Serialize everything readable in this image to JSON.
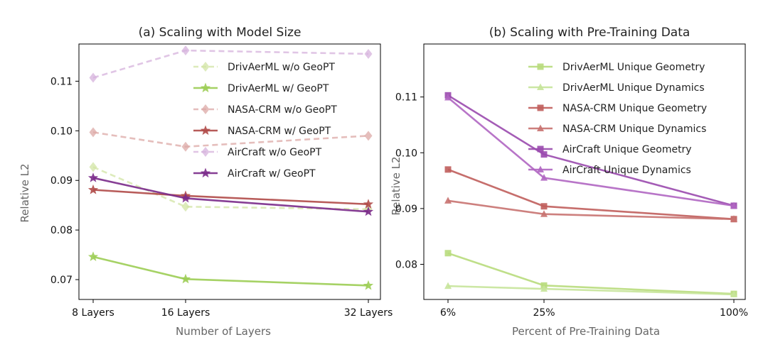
{
  "chart_data": [
    {
      "type": "line",
      "title": "(a) Scaling with Model Size",
      "xlabel": "Number of Layers",
      "ylabel": "Relative L2",
      "categories": [
        "8 Layers",
        "16 Layers",
        "32 Layers"
      ],
      "x": [
        8,
        16,
        32
      ],
      "ylim": [
        0.066,
        0.1175
      ],
      "yticks": [
        0.07,
        0.08,
        0.09,
        0.1,
        0.11
      ],
      "ytick_labels": [
        "0.07",
        "0.08",
        "0.09",
        "0.10",
        "0.11"
      ],
      "grid": false,
      "legend": "top-right",
      "series": [
        {
          "name": "DrivAerML w/o GeoPT",
          "values": [
            0.0927,
            0.0847,
            0.0842
          ],
          "color": "#d2e4a4",
          "dashed": true,
          "marker": "diamond"
        },
        {
          "name": "DrivAerML w/ GeoPT",
          "values": [
            0.0746,
            0.0701,
            0.0688
          ],
          "color": "#9ccd54",
          "dashed": false,
          "marker": "star"
        },
        {
          "name": "NASA-CRM w/o GeoPT",
          "values": [
            0.0997,
            0.0968,
            0.099
          ],
          "color": "#dca8a6",
          "dashed": true,
          "marker": "diamond"
        },
        {
          "name": "NASA-CRM w/ GeoPT",
          "values": [
            0.0881,
            0.0869,
            0.0852
          ],
          "color": "#b04a48",
          "dashed": false,
          "marker": "star"
        },
        {
          "name": "AirCraft w/o GeoPT",
          "values": [
            0.1107,
            0.1162,
            0.1155
          ],
          "color": "#d6b2dc",
          "dashed": true,
          "marker": "diamond"
        },
        {
          "name": "AirCraft w/ GeoPT",
          "values": [
            0.0905,
            0.0864,
            0.0837
          ],
          "color": "#7a2a8a",
          "dashed": false,
          "marker": "star"
        }
      ]
    },
    {
      "type": "line",
      "title": "(b) Scaling with Pre-Training Data",
      "xlabel": "Percent of Pre-Training Data",
      "ylabel": "Relative L2",
      "categories": [
        "6%",
        "25%",
        "100%"
      ],
      "x": [
        6,
        25,
        100
      ],
      "ylim": [
        0.0737,
        0.1195
      ],
      "yticks": [
        0.08,
        0.09,
        0.1,
        0.11
      ],
      "ytick_labels": [
        "0.08",
        "0.09",
        "0.10",
        "0.11"
      ],
      "grid": false,
      "legend": "top-right",
      "series": [
        {
          "name": "DrivAerML Unique Geometry",
          "values": [
            0.082,
            0.0762,
            0.0747
          ],
          "color": "#b8dc7c",
          "marker": "square"
        },
        {
          "name": "DrivAerML Unique Dynamics",
          "values": [
            0.0761,
            0.0756,
            0.0746
          ],
          "color": "#c6e49a",
          "marker": "triangle"
        },
        {
          "name": "NASA-CRM Unique Geometry",
          "values": [
            0.097,
            0.0904,
            0.0881
          ],
          "color": "#c05e5c",
          "marker": "square"
        },
        {
          "name": "NASA-CRM Unique Dynamics",
          "values": [
            0.0914,
            0.089,
            0.0881
          ],
          "color": "#c87270",
          "marker": "triangle"
        },
        {
          "name": "AirCraft Unique Geometry",
          "values": [
            0.1103,
            0.0997,
            0.0905
          ],
          "color": "#9a4aae",
          "marker": "square"
        },
        {
          "name": "AirCraft Unique Dynamics",
          "values": [
            0.1099,
            0.0955,
            0.0905
          ],
          "color": "#b066c2",
          "marker": "triangle"
        }
      ]
    }
  ]
}
